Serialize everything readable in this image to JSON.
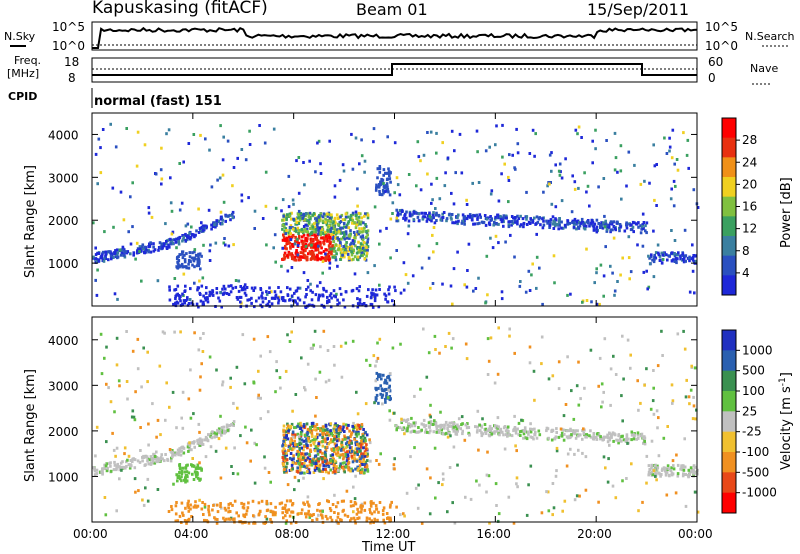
{
  "header": {
    "station": "Kapuskasing (fitACF)",
    "beam": "Beam 01",
    "date": "15/Sep/2011"
  },
  "top_panels": {
    "nsky_label": "N.Sky",
    "nsearch_label": "N.Search",
    "freq_label": "Freq.",
    "freq_unit": "[MHz]",
    "nave_label": "Nave",
    "cpid_label": "CPID",
    "cpid_value": "normal (fast) 151",
    "noise_left_ticks": [
      "10^5",
      "10^0"
    ],
    "noise_right_ticks": [
      "10^5",
      "10^0"
    ],
    "freq_ticks": [
      "18",
      "8"
    ],
    "nave_ticks": [
      "60",
      "0"
    ]
  },
  "chart_data": [
    {
      "type": "heatmap",
      "name": "power",
      "ylabel": "Slant Range [km]",
      "ylim": [
        0,
        4500
      ],
      "yticks": [
        "1000",
        "2000",
        "3000",
        "4000"
      ],
      "xlim": [
        0,
        24
      ],
      "colorbar_label": "Power [dB]",
      "colorbar_ticks": [
        "28",
        "24",
        "20",
        "16",
        "12",
        "8",
        "4"
      ],
      "colors": [
        "#1e28d8",
        "#2a50c0",
        "#3a7fa0",
        "#3aa060",
        "#80c040",
        "#f0d020",
        "#f09018",
        "#e83010",
        "#ff0000"
      ]
    },
    {
      "type": "heatmap",
      "name": "velocity",
      "ylabel": "Slant Range [km]",
      "ylim": [
        0,
        4500
      ],
      "yticks": [
        "1000",
        "2000",
        "3000",
        "4000"
      ],
      "xlim": [
        0,
        24
      ],
      "colorbar_label": "Velocity [m s-1]",
      "colorbar_ticks": [
        "1000",
        "500",
        "100",
        "25",
        "-25",
        "-100",
        "-500",
        "-1000"
      ],
      "colors": [
        "#2030c0",
        "#2a60b0",
        "#3a9050",
        "#60c040",
        "#c0c0c0",
        "#f0c030",
        "#f09020",
        "#e84818",
        "#ff0000"
      ]
    }
  ],
  "xaxis": {
    "title": "Time UT",
    "ticks": [
      "00:00",
      "04:00",
      "08:00",
      "12:00",
      "16:00",
      "20:00",
      "00:00"
    ]
  }
}
